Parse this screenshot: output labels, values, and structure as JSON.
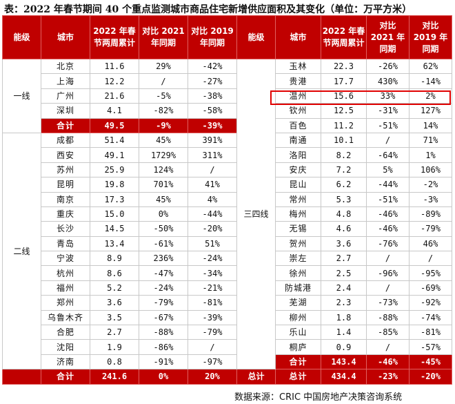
{
  "title": "表：2022 年春节期间 40 个重点监测城市商品住宅新增供应面积及其变化（单位：万平方米）",
  "headers": {
    "tier": "能级",
    "city": "城市",
    "col1": "2022 年春节两周累计",
    "col2": "对比 2021 年同期",
    "col3": "对比 2019 年同期"
  },
  "left": {
    "tier1_label": "一线",
    "tier1_rows": [
      {
        "city": "北京",
        "v": "11.6",
        "c21": "29%",
        "c19": "-42%"
      },
      {
        "city": "上海",
        "v": "12.2",
        "c21": "/",
        "c19": "-27%"
      },
      {
        "city": "广州",
        "v": "21.6",
        "c21": "-5%",
        "c19": "-38%"
      },
      {
        "city": "深圳",
        "v": "4.1",
        "c21": "-82%",
        "c19": "-58%"
      }
    ],
    "tier1_sum": {
      "city": "合计",
      "v": "49.5",
      "c21": "-9%",
      "c19": "-39%"
    },
    "tier2_label": "二线",
    "tier2_rows": [
      {
        "city": "成都",
        "v": "51.4",
        "c21": "45%",
        "c19": "391%"
      },
      {
        "city": "西安",
        "v": "49.1",
        "c21": "1729%",
        "c19": "311%"
      },
      {
        "city": "苏州",
        "v": "25.9",
        "c21": "124%",
        "c19": "/"
      },
      {
        "city": "昆明",
        "v": "19.8",
        "c21": "701%",
        "c19": "41%"
      },
      {
        "city": "南京",
        "v": "17.3",
        "c21": "45%",
        "c19": "4%"
      },
      {
        "city": "重庆",
        "v": "15.0",
        "c21": "0%",
        "c19": "-44%"
      },
      {
        "city": "长沙",
        "v": "14.5",
        "c21": "-50%",
        "c19": "-20%"
      },
      {
        "city": "青岛",
        "v": "13.4",
        "c21": "-61%",
        "c19": "51%"
      },
      {
        "city": "宁波",
        "v": "8.9",
        "c21": "236%",
        "c19": "-24%"
      },
      {
        "city": "杭州",
        "v": "8.6",
        "c21": "-47%",
        "c19": "-34%"
      },
      {
        "city": "福州",
        "v": "5.2",
        "c21": "-24%",
        "c19": "-21%"
      },
      {
        "city": "郑州",
        "v": "3.6",
        "c21": "-79%",
        "c19": "-81%"
      },
      {
        "city": "乌鲁木齐",
        "v": "3.5",
        "c21": "-67%",
        "c19": "-39%"
      },
      {
        "city": "合肥",
        "v": "2.7",
        "c21": "-88%",
        "c19": "-79%"
      },
      {
        "city": "沈阳",
        "v": "1.9",
        "c21": "-86%",
        "c19": "/"
      },
      {
        "city": "济南",
        "v": "0.8",
        "c21": "-91%",
        "c19": "-97%"
      }
    ],
    "tier2_sum": {
      "city": "合计",
      "v": "241.6",
      "c21": "0%",
      "c19": "20%"
    }
  },
  "right": {
    "tier34_label": "三四线",
    "rows": [
      {
        "city": "玉林",
        "v": "22.3",
        "c21": "-26%",
        "c19": "62%"
      },
      {
        "city": "贵港",
        "v": "17.7",
        "c21": "430%",
        "c19": "-14%"
      },
      {
        "city": "温州",
        "v": "15.6",
        "c21": "33%",
        "c19": "2%"
      },
      {
        "city": "钦州",
        "v": "12.5",
        "c21": "-31%",
        "c19": "127%"
      },
      {
        "city": "百色",
        "v": "11.2",
        "c21": "-51%",
        "c19": "14%"
      },
      {
        "city": "南通",
        "v": "10.1",
        "c21": "/",
        "c19": "71%"
      },
      {
        "city": "洛阳",
        "v": "8.2",
        "c21": "-64%",
        "c19": "1%"
      },
      {
        "city": "安庆",
        "v": "7.2",
        "c21": "5%",
        "c19": "106%"
      },
      {
        "city": "昆山",
        "v": "6.2",
        "c21": "-44%",
        "c19": "-2%"
      },
      {
        "city": "常州",
        "v": "5.3",
        "c21": "-51%",
        "c19": "-3%"
      },
      {
        "city": "梅州",
        "v": "4.8",
        "c21": "-46%",
        "c19": "-89%"
      },
      {
        "city": "无锡",
        "v": "4.6",
        "c21": "-46%",
        "c19": "-79%"
      },
      {
        "city": "贺州",
        "v": "3.6",
        "c21": "-76%",
        "c19": "46%"
      },
      {
        "city": "崇左",
        "v": "2.7",
        "c21": "/",
        "c19": "/"
      },
      {
        "city": "徐州",
        "v": "2.5",
        "c21": "-96%",
        "c19": "-95%"
      },
      {
        "city": "防城港",
        "v": "2.4",
        "c21": "/",
        "c19": "-69%"
      },
      {
        "city": "芜湖",
        "v": "2.3",
        "c21": "-73%",
        "c19": "-92%"
      },
      {
        "city": "柳州",
        "v": "1.8",
        "c21": "-88%",
        "c19": "-74%"
      },
      {
        "city": "乐山",
        "v": "1.4",
        "c21": "-85%",
        "c19": "-81%"
      },
      {
        "city": "桐庐",
        "v": "0.9",
        "c21": "/",
        "c19": "-57%"
      }
    ],
    "tier34_sum": {
      "city": "合计",
      "v": "143.4",
      "c21": "-46%",
      "c19": "-45%"
    },
    "total_label": "总计",
    "total_sum": {
      "city": "总计",
      "v": "434.4",
      "c21": "-23%",
      "c19": "-20%"
    }
  },
  "source": "数据来源：CRIC 中国房地产决策咨询系统",
  "colors": {
    "header_bg": "#c00000",
    "highlight_border": "#e00000"
  }
}
